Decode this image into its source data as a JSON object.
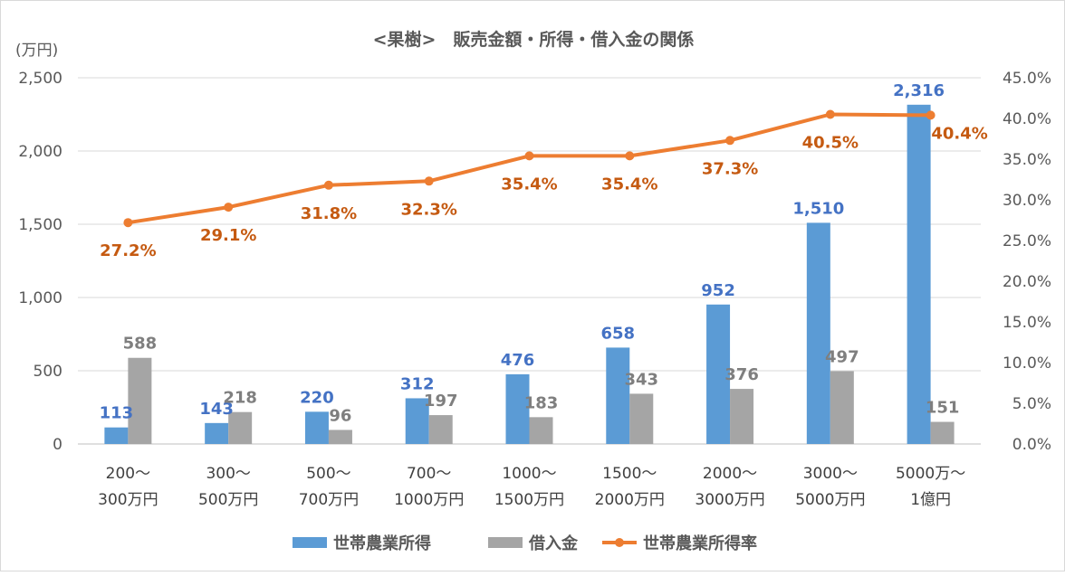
{
  "chart_data": {
    "type": "bar",
    "title": "<果樹>　販売金額・所得・借入金の関係",
    "ylabel": "(万円)",
    "ylim": [
      0,
      2500
    ],
    "y_ticks": [
      "0",
      "500",
      "1,000",
      "1,500",
      "2,000",
      "2,500"
    ],
    "y2lim": [
      0,
      45
    ],
    "y2_ticks": [
      "0.0%",
      "5.0%",
      "10.0%",
      "15.0%",
      "20.0%",
      "25.0%",
      "30.0%",
      "35.0%",
      "40.0%",
      "45.0%"
    ],
    "grid": true,
    "legend_position": "bottom",
    "categories": [
      [
        "200～",
        "300万円"
      ],
      [
        "300～",
        "500万円"
      ],
      [
        "500～",
        "700万円"
      ],
      [
        "700～",
        "1000万円"
      ],
      [
        "1000～",
        "1500万円"
      ],
      [
        "1500～",
        "2000万円"
      ],
      [
        "2000～",
        "3000万円"
      ],
      [
        "3000～",
        "5000万円"
      ],
      [
        "5000万～",
        "1億円"
      ]
    ],
    "series": [
      {
        "name": "世帯農業所得",
        "type": "bar",
        "axis": "left",
        "color": "#5B9BD5",
        "label_color": "#4472C4",
        "values": [
          113,
          143,
          220,
          312,
          476,
          658,
          952,
          1510,
          2316
        ],
        "labels": [
          "113",
          "143",
          "220",
          "312",
          "476",
          "658",
          "952",
          "1,510",
          "2,316"
        ]
      },
      {
        "name": "借入金",
        "type": "bar",
        "axis": "left",
        "color": "#A5A5A5",
        "label_color": "#7F7F7F",
        "values": [
          588,
          218,
          96,
          197,
          183,
          343,
          376,
          497,
          151
        ],
        "labels": [
          "588",
          "218",
          "96",
          "197",
          "183",
          "343",
          "376",
          "497",
          "151"
        ]
      },
      {
        "name": "世帯農業所得率",
        "type": "line",
        "axis": "right",
        "color": "#ED7D31",
        "label_color": "#C55A11",
        "values": [
          27.2,
          29.1,
          31.8,
          32.3,
          35.4,
          35.4,
          37.3,
          40.5,
          40.4
        ],
        "labels": [
          "27.2%",
          "29.1%",
          "31.8%",
          "32.3%",
          "35.4%",
          "35.4%",
          "37.3%",
          "40.5%",
          "40.4%"
        ]
      }
    ]
  }
}
